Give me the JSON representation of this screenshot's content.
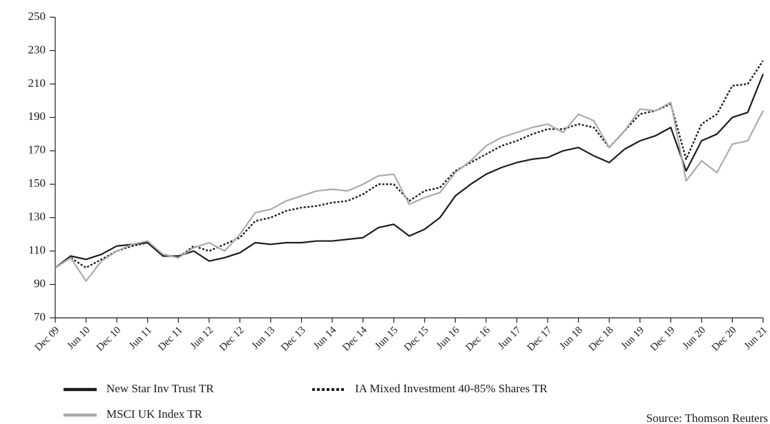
{
  "chart_data": {
    "type": "line",
    "categories": [
      "Dec 09",
      null,
      "Jun 10",
      null,
      "Dec 10",
      null,
      "Jun 11",
      null,
      "Dec 11",
      null,
      "Jun 12",
      null,
      "Dec 12",
      null,
      "Jun 13",
      null,
      "Dec 13",
      null,
      "Jun 14",
      null,
      "Dec 14",
      null,
      "Jun 15",
      null,
      "Dec 15",
      null,
      "Jun 16",
      null,
      "Dec 16",
      null,
      "Jun 17",
      null,
      "Dec 17",
      null,
      "Jun 18",
      null,
      "Dec 18",
      null,
      "Jun 19",
      null,
      "Dec 19",
      null,
      "Jun 20",
      null,
      "Dec 20",
      null,
      "Jun 21"
    ],
    "series": [
      {
        "name": "New Star Inv Trust TR",
        "color": "#1a1a1a",
        "dash": "solid",
        "values": [
          100,
          107,
          105,
          108,
          113,
          114,
          115,
          107,
          107,
          110,
          104,
          106,
          109,
          115,
          114,
          115,
          115,
          116,
          116,
          117,
          118,
          124,
          126,
          119,
          123,
          130,
          143,
          150,
          156,
          160,
          163,
          165,
          166,
          170,
          172,
          167,
          163,
          171,
          176,
          179,
          184,
          158,
          176,
          180,
          190,
          193,
          216
        ]
      },
      {
        "name": "IA Mixed Investment 40-85% Shares TR",
        "color": "#1a1a1a",
        "dash": "dotted",
        "values": [
          100,
          106,
          100,
          105,
          110,
          113,
          115,
          108,
          106,
          113,
          110,
          114,
          118,
          128,
          130,
          134,
          136,
          137,
          139,
          140,
          144,
          150,
          150,
          140,
          146,
          148,
          158,
          163,
          168,
          173,
          176,
          180,
          183,
          183,
          186,
          184,
          172,
          182,
          192,
          194,
          198,
          165,
          186,
          192,
          209,
          210,
          224
        ]
      },
      {
        "name": "MSCI UK Index TR",
        "color": "#aaaaaa",
        "dash": "solid",
        "values": [
          100,
          106,
          92,
          104,
          110,
          114,
          116,
          108,
          106,
          112,
          115,
          110,
          120,
          133,
          135,
          140,
          143,
          146,
          147,
          146,
          150,
          155,
          156,
          138,
          142,
          145,
          157,
          164,
          173,
          178,
          181,
          184,
          186,
          181,
          192,
          188,
          172,
          182,
          195,
          194,
          199,
          152,
          164,
          157,
          174,
          176,
          194
        ]
      }
    ],
    "ylim": [
      70,
      250
    ],
    "yticks": [
      70,
      90,
      110,
      130,
      150,
      170,
      190,
      210,
      230,
      250
    ],
    "grid": false,
    "source": "Source: Thomson Reuters"
  }
}
